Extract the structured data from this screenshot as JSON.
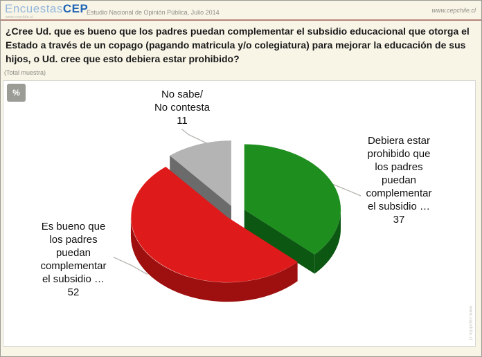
{
  "header": {
    "logo_primary": "Encuestas",
    "logo_secondary": "CEP",
    "logo_url": "www.cepchile.cl",
    "subtitle": "Estudio Nacional de Opinión Pública, Julio 2014",
    "site_url": "www.cepchile.cl"
  },
  "question": "¿Cree Ud. que es bueno que los padres puedan complementar el subsidio educacional que otorga el Estado a través de un copago (pagando matricula y/o colegiatura) para mejorar la educación de sus hijos, o Ud. cree que esto debiera estar prohibido?",
  "sample_note": "(Total muestra)",
  "percent_icon": "%",
  "watermark_vertical": "www.cepchile.cl",
  "chart_data": {
    "type": "pie",
    "style": "3d-exploded",
    "unit": "%",
    "start_angle_deg": 0,
    "direction": "clockwise",
    "total": 100,
    "slices": [
      {
        "label": "Debiera estar prohibido que los padres puedan complementar el subsidio …",
        "display_label": "Debiera estar\nprohibido que\nlos padres\npuedan\ncomplementar\nel subsidio …",
        "value": 37,
        "color": "#1e8e1e",
        "dark_color": "#0c5712"
      },
      {
        "label": "Es bueno que los padres puedan complementar el subsidio …",
        "display_label": "Es bueno que\nlos padres\npuedan\ncomplementar\nel subsidio …",
        "value": 52,
        "color": "#df1a1a",
        "dark_color": "#9e0f0f"
      },
      {
        "label": "No sabe/ No contesta",
        "display_label": "No sabe/\nNo contesta",
        "value": 11,
        "color": "#b4b4b4",
        "dark_color": "#6b6b6b"
      }
    ]
  }
}
